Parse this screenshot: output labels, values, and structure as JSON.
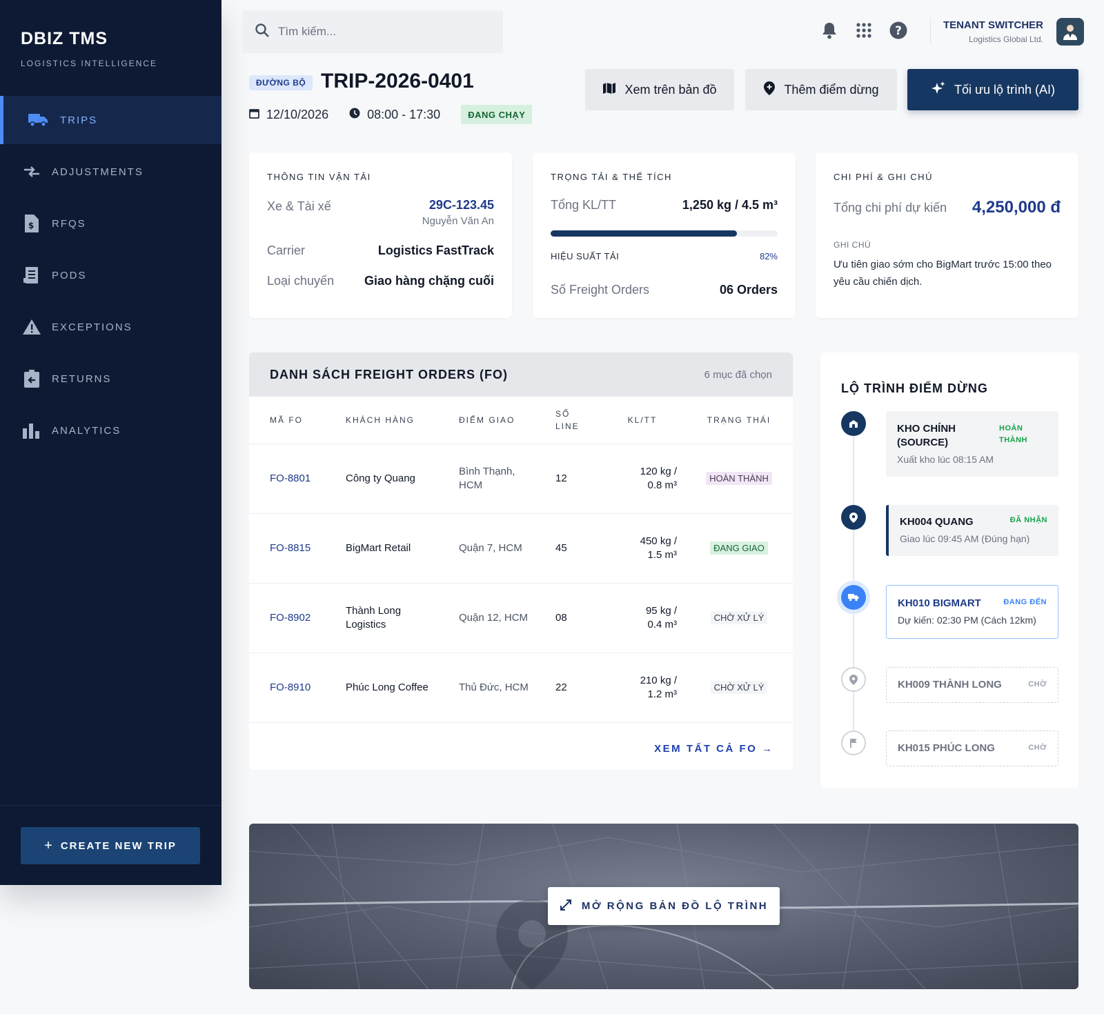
{
  "brand": {
    "title": "DBIZ TMS",
    "subtitle": "LOGISTICS INTELLIGENCE"
  },
  "sidebar": {
    "items": [
      {
        "label": "TRIPS",
        "icon": "truck-icon",
        "active": true
      },
      {
        "label": "ADJUSTMENTS",
        "icon": "arrows-compare-icon",
        "active": false
      },
      {
        "label": "RFQS",
        "icon": "invoice-dollar-icon",
        "active": false
      },
      {
        "label": "PODS",
        "icon": "receipt-icon",
        "active": false
      },
      {
        "label": "EXCEPTIONS",
        "icon": "warning-icon",
        "active": false
      },
      {
        "label": "RETURNS",
        "icon": "clipboard-return-icon",
        "active": false
      },
      {
        "label": "ANALYTICS",
        "icon": "bar-chart-icon",
        "active": false
      }
    ],
    "create_label": "CREATE NEW TRIP"
  },
  "search": {
    "placeholder": "Tìm kiếm..."
  },
  "tenant": {
    "title": "TENANT SWITCHER",
    "subtitle": "Logistics Global Ltd."
  },
  "trip": {
    "mode_badge": "ĐƯỜNG BỘ",
    "id": "TRIP-2026-0401",
    "date": "12/10/2026",
    "time": "08:00 - 17:30",
    "status": "ĐANG CHẠY"
  },
  "actions": {
    "map": "Xem trên bản đồ",
    "add_stop": "Thêm điểm dừng",
    "optimize": "Tối ưu lộ trình (AI)"
  },
  "transport": {
    "title": "THÔNG TIN VẬN TẢI",
    "vehicle_label": "Xe & Tài xế",
    "plate": "29C-123.45",
    "driver": "Nguyễn Văn An",
    "carrier_label": "Carrier",
    "carrier": "Logistics FastTrack",
    "type_label": "Loại chuyến",
    "type": "Giao hàng chặng cuối"
  },
  "capacity": {
    "title": "TRỌNG TẢI & THỂ TÍCH",
    "total_label": "Tổng KL/TT",
    "total": "1,250 kg / 4.5 m³",
    "efficiency_label": "HIỆU SUẤT TẢI",
    "efficiency": "82%",
    "efficiency_value": 82,
    "fo_label": "Số Freight Orders",
    "fo_count": "06 Orders"
  },
  "cost": {
    "title": "CHI PHÍ & GHI CHÚ",
    "total_label": "Tổng chi phí dự kiến",
    "total": "4,250,000 đ",
    "note_label": "GHI CHÚ",
    "note": "Ưu tiên giao sớm cho BigMart trước 15:00 theo yêu cầu chiến dịch."
  },
  "fo": {
    "title": "DANH SÁCH FREIGHT ORDERS (FO)",
    "selected": "6 mục đã chọn",
    "columns": [
      "MÃ FO",
      "KHÁCH HÀNG",
      "ĐIỂM GIAO",
      "SỐ LINE",
      "KL/TT",
      "TRẠNG THÁI"
    ],
    "rows": [
      {
        "code": "FO-8801",
        "customer": "Công ty Quang",
        "place": "Bình Thạnh, HCM",
        "lines": "12",
        "weight": "120 kg /",
        "volume": "0.8 m³",
        "status": "HOÀN THÀNH",
        "status_kind": "done"
      },
      {
        "code": "FO-8815",
        "customer": "BigMart Retail",
        "place": "Quận 7, HCM",
        "lines": "45",
        "weight": "450 kg /",
        "volume": "1.5 m³",
        "status": "ĐANG GIAO",
        "status_kind": "ship"
      },
      {
        "code": "FO-8902",
        "customer": "Thành Long Logistics",
        "place": "Quận 12, HCM",
        "lines": "08",
        "weight": "95 kg /",
        "volume": "0.4 m³",
        "status": "CHỜ XỬ LÝ",
        "status_kind": "wait"
      },
      {
        "code": "FO-8910",
        "customer": "Phúc Long Coffee",
        "place": "Thủ Đức, HCM",
        "lines": "22",
        "weight": "210 kg /",
        "volume": "1.2 m³",
        "status": "CHỜ XỬ LÝ",
        "status_kind": "wait"
      }
    ],
    "view_all": "XEM TẤT CẢ FO"
  },
  "route": {
    "title": "LỘ TRÌNH ĐIỂM DỪNG",
    "stops": [
      {
        "name": "KHO CHÍNH (SOURCE)",
        "sub": "Xuất kho lúc 08:15 AM",
        "tag": "HOÀN THÀNH",
        "tag_color": "#16a34a"
      },
      {
        "name": "KH004 QUANG",
        "sub": "Giao lúc 09:45 AM (Đúng hạn)",
        "tag": "ĐÃ NHẬN",
        "tag_color": "#16a34a"
      },
      {
        "name": "KH010 BIGMART",
        "sub": "Dự kiến: 02:30 PM (Cách 12km)",
        "tag": "ĐANG ĐẾN",
        "tag_color": "#3b82f6"
      },
      {
        "name": "KH009 THÀNH LONG",
        "sub": "",
        "tag": "CHỜ",
        "tag_color": "#9ca3af"
      },
      {
        "name": "KH015 PHÚC LONG",
        "sub": "",
        "tag": "CHỜ",
        "tag_color": "#9ca3af"
      }
    ]
  },
  "map": {
    "expand_label": "MỞ RỘNG BẢN ĐỒ LỘ TRÌNH"
  }
}
